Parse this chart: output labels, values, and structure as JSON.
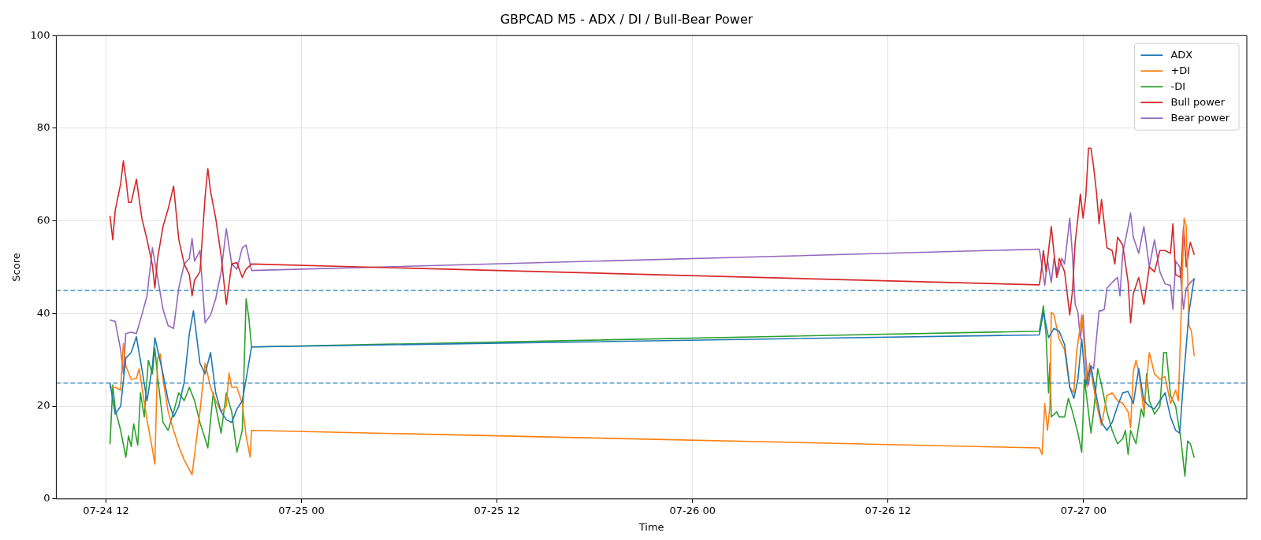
{
  "chart_data": {
    "type": "line",
    "title": "GBPCAD M5 - ADX / DI / Bull-Bear Power",
    "xlabel": "Time",
    "ylabel": "Score",
    "xlim": [
      "--07-24T08:57",
      "--07-27T10:01"
    ],
    "xticks": [
      {
        "value": "--07-24T12:00",
        "label": "07-24 12"
      },
      {
        "value": "--07-25T00:00",
        "label": "07-25 00"
      },
      {
        "value": "--07-25T12:00",
        "label": "07-25 12"
      },
      {
        "value": "--07-26T00:00",
        "label": "07-26 00"
      },
      {
        "value": "--07-26T12:00",
        "label": "07-26 12"
      },
      {
        "value": "--07-27T00:00",
        "label": "07-27 00"
      }
    ],
    "ylim": [
      0,
      100
    ],
    "yticks": [
      0,
      20,
      40,
      60,
      80,
      100
    ],
    "grid": true,
    "legend": "top right",
    "ref_lines": [
      {
        "axis": "y",
        "value": 45,
        "color": "#1f77b4",
        "line_style": "dashed"
      },
      {
        "axis": "y",
        "value": 25,
        "color": "#1f77b4",
        "line_style": "dashed"
      }
    ],
    "series": [
      {
        "name": "ADX",
        "color": "#1f77b4",
        "x": [
          "--07-24T12:15",
          "--07-24T12:34",
          "--07-24T12:54",
          "--07-24T13:13",
          "--07-24T13:33",
          "--07-24T13:52",
          "--07-24T14:12",
          "--07-24T14:31",
          "--07-24T14:51",
          "--07-24T15:00",
          "--07-24T15:10",
          "--07-24T15:30",
          "--07-24T15:49",
          "--07-24T16:09",
          "--07-24T16:28",
          "--07-24T16:48",
          "--07-24T17:07",
          "--07-24T17:22",
          "--07-24T17:46",
          "--07-24T18:05",
          "--07-24T18:25",
          "--07-24T18:44",
          "--07-24T19:04",
          "--07-24T19:23",
          "--07-24T19:43",
          "--07-24T20:02",
          "--07-24T20:22",
          "--07-24T20:36",
          "--07-24T20:56",
          "--07-26T21:17",
          "--07-26T21:32",
          "--07-26T21:51",
          "--07-26T22:11",
          "--07-26T22:30",
          "--07-26T22:50",
          "--07-26T23:09",
          "--07-26T23:24",
          "--07-26T23:39",
          "--07-26T23:53",
          "--07-27T00:08",
          "--07-27T00:27",
          "--07-27T00:47",
          "--07-27T01:06",
          "--07-27T01:26",
          "--07-27T01:45",
          "--07-27T02:05",
          "--07-27T02:24",
          "--07-27T02:44",
          "--07-27T03:03",
          "--07-27T03:23",
          "--07-27T03:42",
          "--07-27T04:02",
          "--07-27T04:21",
          "--07-27T04:41",
          "--07-27T05:00",
          "--07-27T05:20",
          "--07-27T05:39",
          "--07-27T05:54",
          "--07-27T06:08",
          "--07-27T06:28",
          "--07-27T06:47"
        ],
        "values": [
          24.9,
          18.3,
          20,
          30.4,
          31.6,
          35,
          28.1,
          21.2,
          28.7,
          34.8,
          32.2,
          27,
          21.2,
          17.7,
          20,
          25.2,
          35.7,
          40.6,
          29.3,
          27,
          31.6,
          22.9,
          18.8,
          17.1,
          16.5,
          19.4,
          21.2,
          25.8,
          32.8,
          35.4,
          40.3,
          34.8,
          36.8,
          36.2,
          33.3,
          24.1,
          21.7,
          25.8,
          34.5,
          24.6,
          28.7,
          22.3,
          16.5,
          14.8,
          16.5,
          20,
          22.9,
          23.2,
          20.6,
          28.1,
          21.2,
          20,
          19.4,
          21.2,
          22.9,
          17.7,
          14.8,
          14.2,
          25.8,
          40.3,
          47.5
        ]
      },
      {
        "name": "+DI",
        "color": "#ff7f0e",
        "x": [
          "--07-24T12:15",
          "--07-24T12:34",
          "--07-24T12:54",
          "--07-24T13:04",
          "--07-24T13:13",
          "--07-24T13:33",
          "--07-24T13:52",
          "--07-24T14:02",
          "--07-24T14:31",
          "--07-24T14:51",
          "--07-24T15:00",
          "--07-24T15:10",
          "--07-24T15:20",
          "--07-24T15:30",
          "--07-24T15:49",
          "--07-24T16:09",
          "--07-24T16:28",
          "--07-24T16:48",
          "--07-24T17:17",
          "--07-24T17:36",
          "--07-24T17:46",
          "--07-24T18:05",
          "--07-24T18:25",
          "--07-24T18:44",
          "--07-24T19:04",
          "--07-24T19:23",
          "--07-24T19:33",
          "--07-24T19:43",
          "--07-24T20:02",
          "--07-24T20:22",
          "--07-24T20:36",
          "--07-24T20:51",
          "--07-24T20:56",
          "--07-26T21:17",
          "--07-26T21:27",
          "--07-26T21:37",
          "--07-26T21:47",
          "--07-26T21:56",
          "--07-26T22:01",
          "--07-26T22:11",
          "--07-26T22:30",
          "--07-26T22:50",
          "--07-26T23:09",
          "--07-26T23:24",
          "--07-26T23:34",
          "--07-26T23:48",
          "--07-26T23:53",
          "--07-27T00:03",
          "--07-27T00:13",
          "--07-27T00:22",
          "--07-27T00:37",
          "--07-27T00:47",
          "--07-27T01:06",
          "--07-27T01:26",
          "--07-27T01:45",
          "--07-27T02:05",
          "--07-27T02:24",
          "--07-27T02:44",
          "--07-27T02:53",
          "--07-27T03:03",
          "--07-27T03:13",
          "--07-27T03:23",
          "--07-27T03:42",
          "--07-27T04:02",
          "--07-27T04:21",
          "--07-27T04:41",
          "--07-27T05:00",
          "--07-27T05:20",
          "--07-27T05:39",
          "--07-27T05:49",
          "--07-27T05:58",
          "--07-27T06:10",
          "--07-27T06:18",
          "--07-27T06:28",
          "--07-27T06:37",
          "--07-27T06:47"
        ],
        "values": [
          24.1,
          24.1,
          23.5,
          33.6,
          28.7,
          25.8,
          26,
          28.1,
          17.1,
          10.7,
          7.5,
          30.4,
          31.3,
          25.8,
          18.8,
          14.8,
          11.3,
          8.4,
          5.2,
          14.2,
          18.8,
          29.3,
          24.1,
          21.2,
          18.8,
          20,
          27.2,
          24.1,
          24.1,
          20.6,
          13.6,
          9,
          14.8,
          11,
          9.6,
          20.6,
          14.8,
          20,
          40.3,
          39.7,
          34.5,
          32.2,
          24.1,
          22.9,
          31.6,
          37.4,
          39.7,
          32.8,
          24.1,
          29.3,
          24.1,
          20.6,
          15.9,
          22.3,
          22.9,
          21.2,
          20.6,
          18.8,
          15.4,
          27.5,
          29.9,
          27.5,
          18.8,
          31.6,
          27,
          25.8,
          26.4,
          20.6,
          23.5,
          21.2,
          37.4,
          60.6,
          58.8,
          37.4,
          36.2,
          31
        ]
      },
      {
        "name": "-DI",
        "color": "#2ca02c",
        "x": [
          "--07-24T12:15",
          "--07-24T12:25",
          "--07-24T12:34",
          "--07-24T12:54",
          "--07-24T13:13",
          "--07-24T13:23",
          "--07-24T13:33",
          "--07-24T13:42",
          "--07-24T13:57",
          "--07-24T14:07",
          "--07-24T14:21",
          "--07-24T14:36",
          "--07-24T14:51",
          "--07-24T15:00",
          "--07-24T15:10",
          "--07-24T15:30",
          "--07-24T15:49",
          "--07-24T16:09",
          "--07-24T16:28",
          "--07-24T16:48",
          "--07-24T17:07",
          "--07-24T17:26",
          "--07-24T17:46",
          "--07-24T18:05",
          "--07-24T18:15",
          "--07-24T18:35",
          "--07-24T18:44",
          "--07-24T19:04",
          "--07-24T19:23",
          "--07-24T19:43",
          "--07-24T20:02",
          "--07-24T20:22",
          "--07-24T20:36",
          "--07-24T20:46",
          "--07-24T20:56",
          "--07-26T21:17",
          "--07-26T21:32",
          "--07-26T21:42",
          "--07-26T21:51",
          "--07-26T21:56",
          "--07-26T22:01",
          "--07-26T22:21",
          "--07-26T22:30",
          "--07-26T22:50",
          "--07-26T23:04",
          "--07-26T23:19",
          "--07-26T23:39",
          "--07-26T23:53",
          "--07-27T00:03",
          "--07-27T00:13",
          "--07-27T00:27",
          "--07-27T00:37",
          "--07-27T00:52",
          "--07-27T01:06",
          "--07-27T01:26",
          "--07-27T01:45",
          "--07-27T02:05",
          "--07-27T02:24",
          "--07-27T02:34",
          "--07-27T02:44",
          "--07-27T02:53",
          "--07-27T03:13",
          "--07-27T03:32",
          "--07-27T03:42",
          "--07-27T03:52",
          "--07-27T04:02",
          "--07-27T04:21",
          "--07-27T04:41",
          "--07-27T04:55",
          "--07-27T05:05",
          "--07-27T05:20",
          "--07-27T05:39",
          "--07-27T05:58",
          "--07-27T06:13",
          "--07-27T06:23",
          "--07-27T06:33",
          "--07-27T06:47"
        ],
        "values": [
          11.9,
          24.6,
          19.4,
          14.8,
          9,
          13.6,
          11.3,
          16.2,
          11.6,
          22.9,
          17.7,
          29.9,
          27,
          32.5,
          26.4,
          16.5,
          14.8,
          18.8,
          22.9,
          21.2,
          24.1,
          21.2,
          16.5,
          13,
          11,
          22.9,
          20,
          14.2,
          22.9,
          18.8,
          10.1,
          14.8,
          43.2,
          39.1,
          32.8,
          36.2,
          41.7,
          35.1,
          22.9,
          29.3,
          17.7,
          18.8,
          17.7,
          17.7,
          21.7,
          18.8,
          14.2,
          10.1,
          25.8,
          21.2,
          14.2,
          18.8,
          28.1,
          24.6,
          18.8,
          14.8,
          11.9,
          13,
          14.8,
          9.6,
          14.8,
          11.9,
          19.4,
          17.7,
          27,
          21.2,
          18.3,
          20,
          31.6,
          31.6,
          22.3,
          20,
          13,
          4.9,
          12.5,
          11.9,
          9
        ]
      },
      {
        "name": "Bull power",
        "color": "#d62728",
        "x": [
          "--07-24T12:15",
          "--07-24T12:25",
          "--07-24T12:34",
          "--07-24T12:54",
          "--07-24T13:04",
          "--07-24T13:13",
          "--07-24T13:23",
          "--07-24T13:33",
          "--07-24T13:52",
          "--07-24T14:12",
          "--07-24T14:31",
          "--07-24T14:51",
          "--07-24T15:00",
          "--07-24T15:10",
          "--07-24T15:30",
          "--07-24T15:49",
          "--07-24T16:09",
          "--07-24T16:28",
          "--07-24T16:48",
          "--07-24T17:07",
          "--07-24T17:17",
          "--07-24T17:26",
          "--07-24T17:46",
          "--07-24T18:05",
          "--07-24T18:15",
          "--07-24T18:25",
          "--07-24T18:44",
          "--07-24T19:04",
          "--07-24T19:23",
          "--07-24T19:43",
          "--07-24T20:02",
          "--07-24T20:22",
          "--07-24T20:36",
          "--07-24T20:56",
          "--07-26T21:17",
          "--07-26T21:22",
          "--07-26T21:32",
          "--07-26T21:42",
          "--07-26T21:51",
          "--07-26T22:01",
          "--07-26T22:11",
          "--07-26T22:21",
          "--07-26T22:30",
          "--07-26T22:50",
          "--07-26T23:09",
          "--07-26T23:19",
          "--07-26T23:29",
          "--07-26T23:39",
          "--07-26T23:48",
          "--07-26T23:58",
          "--07-27T00:08",
          "--07-27T00:18",
          "--07-27T00:27",
          "--07-27T00:37",
          "--07-27T00:47",
          "--07-27T00:57",
          "--07-27T01:06",
          "--07-27T01:16",
          "--07-27T01:26",
          "--07-27T01:45",
          "--07-27T01:55",
          "--07-27T02:05",
          "--07-27T02:24",
          "--07-27T02:44",
          "--07-27T02:53",
          "--07-27T03:03",
          "--07-27T03:23",
          "--07-27T03:42",
          "--07-27T04:02",
          "--07-27T04:21",
          "--07-27T04:41",
          "--07-27T05:00",
          "--07-27T05:20",
          "--07-27T05:29",
          "--07-27T05:39",
          "--07-27T05:58",
          "--07-27T06:08",
          "--07-27T06:18",
          "--07-27T06:33",
          "--07-27T06:47"
        ],
        "values": [
          61,
          55.9,
          62.3,
          68,
          73,
          69.3,
          64,
          64,
          69,
          60.6,
          56,
          50.4,
          45.5,
          51.9,
          58.8,
          62.6,
          67.5,
          56,
          50.7,
          48.4,
          43.8,
          47.2,
          49,
          65.2,
          71.3,
          66.4,
          60.6,
          52.5,
          42,
          50.7,
          51,
          47.8,
          49.6,
          50.7,
          46.2,
          48.1,
          53.6,
          49,
          53.6,
          58.8,
          53,
          47.8,
          51.9,
          49,
          39.7,
          44.9,
          55.4,
          60.6,
          65.8,
          60.6,
          65.2,
          75.7,
          75.7,
          71.6,
          66.4,
          59.4,
          64.6,
          59.4,
          54.2,
          53.6,
          50.7,
          56.5,
          54.8,
          46.7,
          38,
          44.3,
          47.8,
          42,
          50.1,
          49,
          53.6,
          53.6,
          53,
          59.4,
          48.4,
          47.8,
          58.8,
          50.1,
          55.4,
          52.8
        ]
      },
      {
        "name": "Bear power",
        "color": "#9467bd",
        "x": [
          "--07-24T12:15",
          "--07-24T12:34",
          "--07-24T12:54",
          "--07-24T13:04",
          "--07-24T13:13",
          "--07-24T13:33",
          "--07-24T13:52",
          "--07-24T14:12",
          "--07-24T14:31",
          "--07-24T14:51",
          "--07-24T15:10",
          "--07-24T15:30",
          "--07-24T15:49",
          "--07-24T16:09",
          "--07-24T16:28",
          "--07-24T16:48",
          "--07-24T17:07",
          "--07-24T17:17",
          "--07-24T17:26",
          "--07-24T17:46",
          "--07-24T18:05",
          "--07-24T18:25",
          "--07-24T18:44",
          "--07-24T19:04",
          "--07-24T19:23",
          "--07-24T19:43",
          "--07-24T20:02",
          "--07-24T20:22",
          "--07-24T20:36",
          "--07-24T20:56",
          "--07-26T21:17",
          "--07-26T21:27",
          "--07-26T21:37",
          "--07-26T21:47",
          "--07-26T22:01",
          "--07-26T22:11",
          "--07-26T22:25",
          "--07-26T22:40",
          "--07-26T22:50",
          "--07-26T23:00",
          "--07-26T23:09",
          "--07-26T23:19",
          "--07-26T23:29",
          "--07-26T23:39",
          "--07-26T23:48",
          "--07-26T23:58",
          "--07-27T00:08",
          "--07-27T00:18",
          "--07-27T00:27",
          "--07-27T00:37",
          "--07-27T00:47",
          "--07-27T00:57",
          "--07-27T01:06",
          "--07-27T01:16",
          "--07-27T01:26",
          "--07-27T01:45",
          "--07-27T02:05",
          "--07-27T02:14",
          "--07-27T02:24",
          "--07-27T02:44",
          "--07-27T02:53",
          "--07-27T03:03",
          "--07-27T03:23",
          "--07-27T03:42",
          "--07-27T04:02",
          "--07-27T04:21",
          "--07-27T04:41",
          "--07-27T05:00",
          "--07-27T05:20",
          "--07-27T05:29",
          "--07-27T05:39",
          "--07-27T05:54",
          "--07-27T06:08",
          "--07-27T06:18",
          "--07-27T06:33",
          "--07-27T06:47"
        ],
        "values": [
          38.6,
          38.3,
          32.2,
          27,
          35.7,
          36,
          35.7,
          39.7,
          43.8,
          54.2,
          47.8,
          40.9,
          37.4,
          36.8,
          45.5,
          50.7,
          51.9,
          56.2,
          51.3,
          53.6,
          38,
          39.7,
          43.2,
          49,
          58.3,
          50.7,
          49.6,
          54.2,
          54.8,
          49.3,
          53.9,
          50.1,
          46.1,
          51.6,
          46.7,
          51.9,
          48.4,
          51.9,
          50.7,
          55.9,
          60.6,
          52.5,
          42,
          40.3,
          34.5,
          39.7,
          30.4,
          24.6,
          28.7,
          28.1,
          34.5,
          40.6,
          40.6,
          40.9,
          45.5,
          46.7,
          47.8,
          43.8,
          53,
          58.8,
          61.7,
          56.5,
          53,
          58.8,
          50.1,
          55.9,
          49,
          46.4,
          46.1,
          40.9,
          51.3,
          50.1,
          40.9,
          45.5,
          46.7,
          47.5
        ]
      }
    ]
  }
}
